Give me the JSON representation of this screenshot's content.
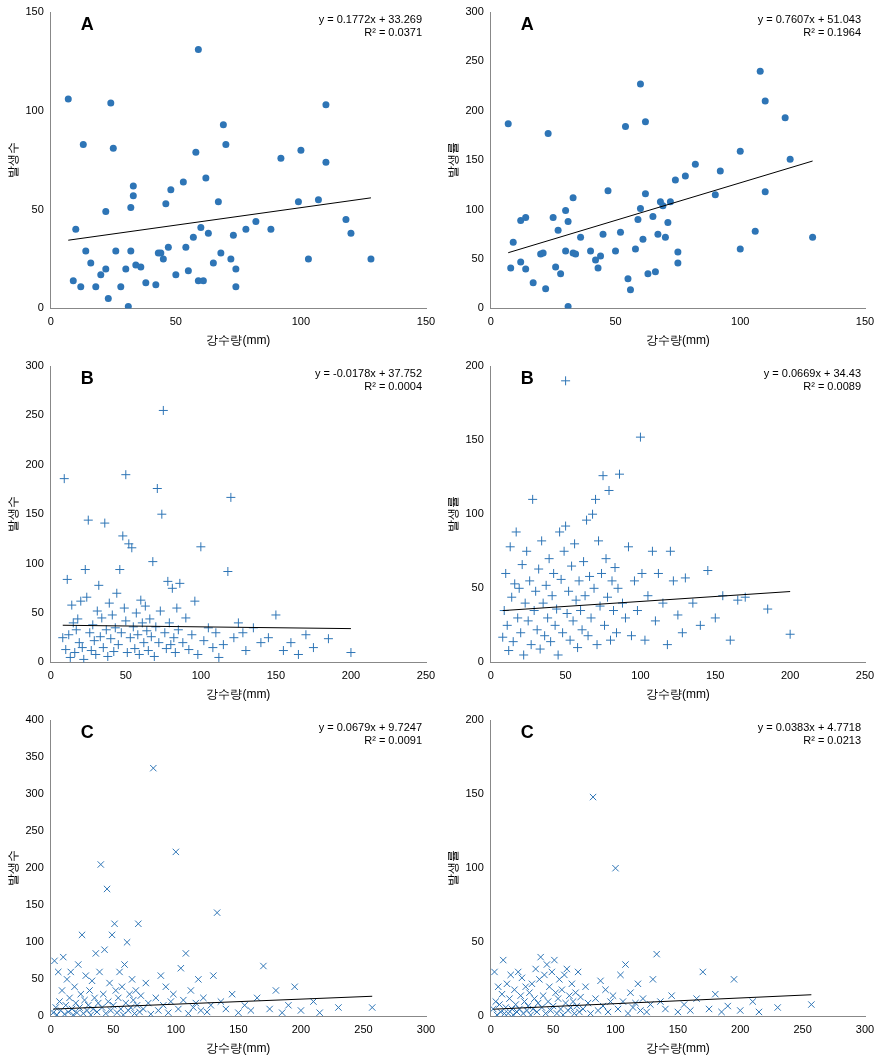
{
  "chart_data": [
    {
      "type": "scatter",
      "label": "A",
      "annotations": [
        "y = 0.1772x + 33.269",
        "R² = 0.0371"
      ],
      "x_label": "강수량(mm)",
      "y_label": "발생수",
      "color": "#2e75b6",
      "marker": "circle",
      "x": [
        7,
        9,
        10,
        12,
        13,
        14,
        16,
        18,
        20,
        22,
        22,
        23,
        24,
        25,
        26,
        28,
        30,
        31,
        32,
        32,
        33,
        33,
        34,
        36,
        38,
        42,
        43,
        44,
        45,
        46,
        47,
        48,
        50,
        53,
        54,
        55,
        57,
        58,
        59,
        59,
        60,
        61,
        62,
        63,
        65,
        67,
        68,
        69,
        70,
        72,
        73,
        74,
        74,
        78,
        82,
        88,
        92,
        99,
        100,
        103,
        107,
        110,
        110,
        118,
        120,
        128
      ],
      "values": [
        106,
        14,
        40,
        11,
        83,
        29,
        23,
        11,
        17,
        20,
        49,
        5,
        104,
        81,
        29,
        11,
        20,
        1,
        29,
        51,
        57,
        62,
        22,
        21,
        13,
        12,
        28,
        28,
        25,
        53,
        31,
        60,
        17,
        64,
        31,
        19,
        36,
        79,
        131,
        14,
        41,
        14,
        66,
        38,
        23,
        54,
        28,
        93,
        83,
        25,
        37,
        20,
        11,
        40,
        44,
        40,
        76,
        54,
        80,
        25,
        55,
        103,
        74,
        45,
        38,
        25
      ],
      "trendline": {
        "slope": 0.1772,
        "intercept": 33.269,
        "x": [
          7,
          128
        ]
      },
      "xlim": [
        0,
        150
      ],
      "xticks": [
        0,
        50,
        100,
        150
      ],
      "ylim": [
        0,
        150
      ],
      "yticks": [
        0,
        50,
        100,
        150
      ]
    },
    {
      "type": "scatter",
      "label": "A",
      "annotations": [
        "y = 0.7607x + 51.043",
        "R² = 0.1964"
      ],
      "x_label": "강수량(mm)",
      "y_label": "발생률",
      "color": "#2e75b6",
      "marker": "circle",
      "x": [
        7,
        8,
        9,
        12,
        12,
        14,
        14,
        17,
        20,
        21,
        22,
        23,
        25,
        26,
        27,
        28,
        30,
        30,
        31,
        31,
        33,
        33,
        34,
        36,
        40,
        42,
        43,
        44,
        45,
        47,
        50,
        52,
        54,
        55,
        56,
        58,
        59,
        60,
        60,
        61,
        62,
        62,
        63,
        65,
        66,
        67,
        68,
        69,
        70,
        71,
        72,
        74,
        75,
        75,
        78,
        82,
        90,
        92,
        100,
        100,
        106,
        108,
        110,
        110,
        118,
        120,
        129
      ],
      "values": [
        187,
        41,
        67,
        89,
        47,
        92,
        40,
        26,
        55,
        56,
        20,
        177,
        92,
        42,
        79,
        35,
        58,
        99,
        2,
        88,
        56,
        112,
        55,
        72,
        58,
        49,
        41,
        53,
        75,
        119,
        58,
        77,
        184,
        30,
        19,
        60,
        90,
        101,
        227,
        70,
        189,
        116,
        35,
        93,
        37,
        75,
        108,
        104,
        72,
        87,
        108,
        130,
        57,
        46,
        134,
        146,
        115,
        139,
        60,
        159,
        78,
        240,
        118,
        210,
        193,
        151,
        72
      ],
      "trendline": {
        "slope": 0.7607,
        "intercept": 51.043,
        "x": [
          7,
          129
        ]
      },
      "xlim": [
        0,
        150
      ],
      "xticks": [
        0,
        50,
        100,
        150
      ],
      "ylim": [
        0,
        300
      ],
      "yticks": [
        0,
        50,
        100,
        150,
        200,
        250,
        300
      ]
    },
    {
      "type": "scatter",
      "label": "B",
      "annotations": [
        "y = -0.0178x + 37.752",
        "R² = 0.0004"
      ],
      "x_label": "강수량(mm)",
      "y_label": "발생수",
      "color": "#2e75b6",
      "marker": "cross",
      "x": [
        8,
        9,
        10,
        11,
        12,
        13,
        14,
        15,
        16,
        17,
        18,
        19,
        20,
        21,
        22,
        23,
        24,
        25,
        26,
        27,
        28,
        29,
        30,
        31,
        32,
        33,
        34,
        35,
        36,
        37,
        38,
        39,
        40,
        41,
        42,
        43,
        44,
        45,
        46,
        47,
        48,
        49,
        50,
        50,
        51,
        52,
        53,
        54,
        55,
        56,
        57,
        58,
        59,
        60,
        61,
        62,
        63,
        64,
        65,
        66,
        67,
        68,
        69,
        70,
        71,
        72,
        73,
        74,
        75,
        76,
        77,
        78,
        79,
        80,
        81,
        82,
        83,
        84,
        85,
        86,
        88,
        90,
        92,
        94,
        96,
        98,
        100,
        102,
        105,
        108,
        110,
        112,
        115,
        118,
        120,
        122,
        125,
        128,
        130,
        135,
        140,
        145,
        150,
        155,
        160,
        165,
        170,
        175,
        185,
        200
      ],
      "values": [
        25,
        186,
        13,
        84,
        28,
        5,
        58,
        40,
        10,
        33,
        44,
        20,
        62,
        15,
        3,
        94,
        66,
        144,
        30,
        12,
        38,
        22,
        8,
        52,
        78,
        26,
        45,
        15,
        141,
        33,
        6,
        60,
        24,
        48,
        11,
        35,
        70,
        18,
        94,
        30,
        128,
        55,
        190,
        42,
        10,
        120,
        25,
        116,
        36,
        14,
        50,
        28,
        8,
        63,
        40,
        20,
        57,
        32,
        12,
        44,
        26,
        102,
        6,
        36,
        176,
        20,
        52,
        150,
        255,
        30,
        14,
        82,
        40,
        18,
        75,
        25,
        10,
        55,
        33,
        80,
        20,
        45,
        13,
        28,
        62,
        8,
        117,
        22,
        35,
        15,
        30,
        5,
        18,
        92,
        167,
        25,
        40,
        30,
        12,
        35,
        20,
        25,
        48,
        12,
        20,
        8,
        28,
        15,
        24,
        10
      ],
      "trendline": {
        "slope": -0.0178,
        "intercept": 37.752,
        "x": [
          8,
          200
        ]
      },
      "xlim": [
        0,
        250
      ],
      "xticks": [
        0,
        50,
        100,
        150,
        200,
        250
      ],
      "ylim": [
        0,
        300
      ],
      "yticks": [
        0,
        50,
        100,
        150,
        200,
        250,
        300
      ]
    },
    {
      "type": "scatter",
      "label": "B",
      "annotations": [
        "y = 0.0669x + 34.43",
        "R² = 0.0089"
      ],
      "x_label": "강수량(mm)",
      "y_label": "발생률",
      "color": "#2e75b6",
      "marker": "cross",
      "x": [
        8,
        9,
        10,
        11,
        12,
        13,
        14,
        15,
        16,
        17,
        18,
        19,
        20,
        21,
        22,
        23,
        24,
        25,
        26,
        27,
        28,
        29,
        30,
        31,
        32,
        33,
        34,
        35,
        36,
        37,
        38,
        39,
        40,
        41,
        42,
        43,
        44,
        45,
        46,
        47,
        48,
        49,
        50,
        50,
        51,
        52,
        53,
        54,
        55,
        56,
        57,
        58,
        59,
        60,
        61,
        62,
        63,
        64,
        65,
        66,
        67,
        68,
        69,
        70,
        71,
        72,
        73,
        74,
        75,
        76,
        77,
        78,
        79,
        80,
        81,
        82,
        83,
        84,
        85,
        86,
        88,
        90,
        92,
        94,
        96,
        98,
        100,
        101,
        103,
        105,
        108,
        110,
        112,
        115,
        118,
        120,
        122,
        125,
        128,
        130,
        135,
        140,
        145,
        150,
        155,
        160,
        165,
        170,
        185,
        200
      ],
      "values": [
        17,
        35,
        60,
        25,
        8,
        78,
        44,
        14,
        53,
        88,
        30,
        50,
        20,
        66,
        5,
        40,
        75,
        28,
        55,
        12,
        110,
        35,
        48,
        22,
        63,
        9,
        82,
        40,
        18,
        52,
        30,
        70,
        14,
        45,
        60,
        25,
        36,
        5,
        88,
        56,
        20,
        75,
        190,
        92,
        33,
        48,
        15,
        65,
        28,
        80,
        42,
        10,
        55,
        35,
        22,
        68,
        45,
        96,
        18,
        58,
        30,
        100,
        50,
        110,
        12,
        82,
        38,
        60,
        126,
        25,
        70,
        44,
        116,
        15,
        55,
        35,
        64,
        20,
        50,
        127,
        40,
        30,
        78,
        18,
        55,
        35,
        152,
        60,
        15,
        45,
        75,
        28,
        60,
        40,
        12,
        75,
        55,
        32,
        20,
        57,
        40,
        25,
        62,
        30,
        45,
        15,
        42,
        44,
        36,
        19
      ],
      "trendline": {
        "slope": 0.0669,
        "intercept": 34.43,
        "x": [
          8,
          200
        ]
      },
      "xlim": [
        0,
        250
      ],
      "xticks": [
        0,
        50,
        100,
        150,
        200,
        250
      ],
      "ylim": [
        0,
        200
      ],
      "yticks": [
        0,
        50,
        100,
        150,
        200
      ]
    },
    {
      "type": "scatter",
      "label": "C",
      "annotations": [
        "y = 0.0679x + 9.7247",
        "R² = 0.0091"
      ],
      "x_label": "강수량(mm)",
      "y_label": "발생수",
      "color": "#2e75b6",
      "marker": "crossRot",
      "x": [
        2,
        3,
        4,
        5,
        6,
        7,
        8,
        9,
        10,
        11,
        12,
        13,
        14,
        15,
        16,
        17,
        18,
        19,
        20,
        21,
        22,
        23,
        24,
        25,
        26,
        27,
        28,
        29,
        30,
        31,
        32,
        33,
        34,
        35,
        36,
        37,
        38,
        39,
        40,
        41,
        42,
        43,
        44,
        45,
        46,
        47,
        48,
        49,
        50,
        51,
        52,
        53,
        54,
        55,
        56,
        57,
        58,
        59,
        60,
        61,
        62,
        63,
        64,
        65,
        66,
        67,
        68,
        69,
        70,
        71,
        72,
        74,
        76,
        78,
        80,
        82,
        84,
        86,
        88,
        90,
        92,
        94,
        96,
        98,
        100,
        102,
        104,
        106,
        108,
        110,
        112,
        114,
        116,
        118,
        120,
        122,
        125,
        128,
        130,
        133,
        136,
        140,
        145,
        150,
        155,
        160,
        165,
        170,
        175,
        180,
        185,
        190,
        195,
        200,
        210,
        215,
        230,
        257
      ],
      "values": [
        5,
        75,
        12,
        2,
        60,
        20,
        8,
        35,
        80,
        3,
        15,
        50,
        6,
        25,
        60,
        10,
        2,
        40,
        18,
        5,
        70,
        12,
        30,
        110,
        4,
        22,
        55,
        8,
        15,
        35,
        2,
        48,
        10,
        25,
        85,
        6,
        18,
        60,
        205,
        12,
        30,
        90,
        4,
        172,
        20,
        45,
        8,
        110,
        15,
        125,
        35,
        5,
        25,
        60,
        10,
        40,
        2,
        70,
        18,
        100,
        8,
        30,
        12,
        50,
        22,
        4,
        35,
        15,
        125,
        6,
        28,
        10,
        45,
        18,
        3,
        335,
        25,
        8,
        55,
        15,
        40,
        5,
        20,
        30,
        222,
        10,
        65,
        22,
        85,
        4,
        35,
        12,
        18,
        50,
        8,
        25,
        6,
        15,
        55,
        140,
        20,
        10,
        30,
        5,
        15,
        8,
        25,
        68,
        10,
        35,
        5,
        15,
        40,
        8,
        20,
        5,
        12,
        12
      ],
      "trendline": {
        "slope": 0.0679,
        "intercept": 9.7247,
        "x": [
          2,
          257
        ]
      },
      "xlim": [
        0,
        300
      ],
      "xticks": [
        0,
        50,
        100,
        150,
        200,
        250,
        300
      ],
      "ylim": [
        0,
        400
      ],
      "yticks": [
        0,
        50,
        100,
        150,
        200,
        250,
        300,
        350,
        400
      ]
    },
    {
      "type": "scatter",
      "label": "C",
      "annotations": [
        "y = 0.0383x + 4.7718",
        "R² = 0.0213"
      ],
      "x_label": "강수량(mm)",
      "y_label": "발생률",
      "color": "#2e75b6",
      "marker": "crossRot",
      "x": [
        2,
        3,
        4,
        5,
        6,
        7,
        8,
        9,
        10,
        11,
        12,
        13,
        14,
        15,
        16,
        17,
        18,
        19,
        20,
        21,
        22,
        23,
        24,
        25,
        26,
        27,
        28,
        29,
        30,
        31,
        32,
        33,
        34,
        35,
        36,
        37,
        38,
        39,
        40,
        41,
        42,
        43,
        44,
        45,
        46,
        47,
        48,
        49,
        50,
        51,
        52,
        53,
        54,
        55,
        56,
        57,
        58,
        59,
        60,
        61,
        62,
        63,
        64,
        65,
        66,
        67,
        68,
        69,
        70,
        71,
        72,
        74,
        76,
        78,
        80,
        82,
        84,
        86,
        88,
        90,
        92,
        94,
        96,
        98,
        100,
        102,
        104,
        106,
        108,
        110,
        112,
        114,
        116,
        118,
        120,
        122,
        125,
        128,
        130,
        133,
        136,
        140,
        145,
        150,
        155,
        160,
        165,
        170,
        175,
        180,
        185,
        190,
        195,
        200,
        210,
        215,
        230,
        257
      ],
      "values": [
        5,
        30,
        10,
        1,
        20,
        8,
        3,
        15,
        38,
        2,
        6,
        22,
        2,
        12,
        28,
        5,
        1,
        18,
        8,
        3,
        30,
        5,
        14,
        26,
        2,
        10,
        20,
        4,
        7,
        16,
        1,
        22,
        5,
        12,
        32,
        3,
        9,
        25,
        40,
        6,
        14,
        28,
        2,
        35,
        10,
        20,
        4,
        30,
        7,
        38,
        16,
        2,
        12,
        25,
        5,
        18,
        1,
        28,
        9,
        32,
        4,
        14,
        6,
        22,
        10,
        2,
        16,
        7,
        30,
        3,
        13,
        5,
        20,
        9,
        2,
        148,
        12,
        4,
        24,
        7,
        18,
        3,
        10,
        14,
        100,
        5,
        28,
        10,
        35,
        2,
        16,
        6,
        9,
        22,
        4,
        12,
        3,
        8,
        25,
        42,
        10,
        5,
        14,
        3,
        8,
        4,
        12,
        30,
        5,
        15,
        3,
        7,
        25,
        4,
        10,
        3,
        6,
        8
      ],
      "trendline": {
        "slope": 0.0383,
        "intercept": 4.7718,
        "x": [
          2,
          257
        ]
      },
      "xlim": [
        0,
        300
      ],
      "xticks": [
        0,
        50,
        100,
        150,
        200,
        250,
        300
      ],
      "ylim": [
        0,
        200
      ],
      "yticks": [
        0,
        50,
        100,
        150,
        200
      ]
    }
  ]
}
